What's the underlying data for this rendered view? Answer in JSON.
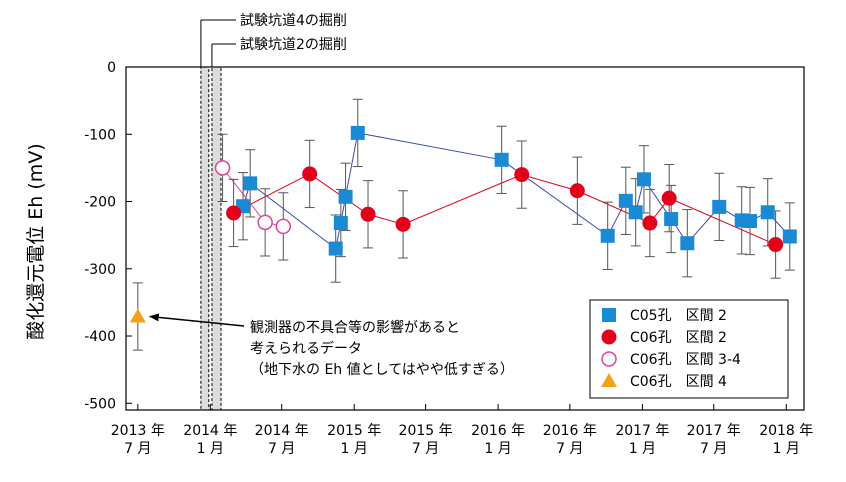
{
  "chart_data": {
    "type": "scatter",
    "title": "",
    "ylabel": "酸化還元電位 Eh (mV)",
    "xlabel": "",
    "xlim": [
      "2013-06-01",
      "2018-02-15"
    ],
    "ylim": [
      -510,
      0
    ],
    "yticks": [
      0,
      -100,
      -200,
      -300,
      -400,
      -500
    ],
    "ytick_labels": [
      "0",
      "-100",
      "-200",
      "-300",
      "-400",
      "-500"
    ],
    "xticks": [
      {
        "date": "2013-07-01",
        "line1": "2013 年",
        "line2": "7 月"
      },
      {
        "date": "2014-01-01",
        "line1": "2014 年",
        "line2": "1 月"
      },
      {
        "date": "2014-07-01",
        "line1": "2014 年",
        "line2": "7 月"
      },
      {
        "date": "2015-01-01",
        "line1": "2015 年",
        "line2": "1 月"
      },
      {
        "date": "2015-07-01",
        "line1": "2015 年",
        "line2": "7 月"
      },
      {
        "date": "2016-01-01",
        "line1": "2016 年",
        "line2": "1 月"
      },
      {
        "date": "2016-07-01",
        "line1": "2016 年",
        "line2": "7 月"
      },
      {
        "date": "2017-01-01",
        "line1": "2017 年",
        "line2": "1 月"
      },
      {
        "date": "2017-07-01",
        "line1": "2017 年",
        "line2": "7 月"
      },
      {
        "date": "2018-01-01",
        "line1": "2018 年",
        "line2": "1 月"
      }
    ],
    "excavation_periods": [
      {
        "label": "試験坑道4の掘削",
        "start": "2013-12-08",
        "end": "2013-12-28"
      },
      {
        "label": "試験坑道2の掘削",
        "start": "2014-01-05",
        "end": "2014-01-28"
      }
    ],
    "series": [
      {
        "name": "C05孔　区間 2",
        "marker": "square",
        "color": "#1a8ad4",
        "line_color": "#3b4aa8",
        "connected": true,
        "points": [
          {
            "x": "2014-03-25",
            "y": -207,
            "err": 50
          },
          {
            "x": "2014-04-12",
            "y": -173,
            "err": 50
          },
          {
            "x": "2014-11-15",
            "y": -270,
            "err": 50
          },
          {
            "x": "2014-11-28",
            "y": -232,
            "err": 50
          },
          {
            "x": "2014-12-10",
            "y": -193,
            "err": 50
          },
          {
            "x": "2015-01-10",
            "y": -98,
            "err": 50
          },
          {
            "x": "2016-01-10",
            "y": -138,
            "err": 50
          },
          {
            "x": "2016-10-05",
            "y": -251,
            "err": 50
          },
          {
            "x": "2016-11-20",
            "y": -199,
            "err": 50
          },
          {
            "x": "2016-12-15",
            "y": -216,
            "err": 50
          },
          {
            "x": "2017-01-05",
            "y": -167,
            "err": 50
          },
          {
            "x": "2017-03-15",
            "y": -226,
            "err": 50
          },
          {
            "x": "2017-04-25",
            "y": -262,
            "err": 50
          },
          {
            "x": "2017-07-15",
            "y": -208,
            "err": 50
          },
          {
            "x": "2017-09-10",
            "y": -228,
            "err": 50
          },
          {
            "x": "2017-10-01",
            "y": -229,
            "err": 50
          },
          {
            "x": "2017-11-15",
            "y": -216,
            "err": 50
          },
          {
            "x": "2018-01-10",
            "y": -252,
            "err": 50
          }
        ]
      },
      {
        "name": "C06孔　区間 2",
        "marker": "circle",
        "color": "#e2001a",
        "line_color": "#e2001a",
        "connected": true,
        "points": [
          {
            "x": "2014-03-01",
            "y": -217,
            "err": 50
          },
          {
            "x": "2014-09-10",
            "y": -159,
            "err": 50
          },
          {
            "x": "2015-02-05",
            "y": -219,
            "err": 50
          },
          {
            "x": "2015-05-05",
            "y": -234,
            "err": 50
          },
          {
            "x": "2016-03-01",
            "y": -160,
            "err": 50
          },
          {
            "x": "2016-07-20",
            "y": -184,
            "err": 50
          },
          {
            "x": "2017-01-20",
            "y": -232,
            "err": 50
          },
          {
            "x": "2017-03-10",
            "y": -195,
            "err": 50
          },
          {
            "x": "2017-12-05",
            "y": -264,
            "err": 50
          }
        ]
      },
      {
        "name": "C06孔　区間 3-4",
        "marker": "open-circle",
        "color": "#e0449a",
        "line_color": "#e0449a",
        "connected": true,
        "points": [
          {
            "x": "2014-02-01",
            "y": -150,
            "err": 50
          },
          {
            "x": "2014-05-20",
            "y": -231,
            "err": 50
          },
          {
            "x": "2014-07-05",
            "y": -237,
            "err": 50
          }
        ]
      },
      {
        "name": "C06孔　区間 4",
        "marker": "triangle",
        "color": "#f5a01a",
        "line_color": "#f5a01a",
        "connected": false,
        "points": [
          {
            "x": "2013-07-01",
            "y": -371,
            "err": 50
          }
        ]
      }
    ],
    "annotation": {
      "lines": [
        "観測器の不具合等の影響があると",
        "考えられるデータ",
        "（地下水の Eh 値としてはやや低すぎる）"
      ],
      "arrow_target": {
        "x": "2013-07-01",
        "y": -371
      }
    },
    "legend_position": "bottom-right",
    "grid": false
  }
}
